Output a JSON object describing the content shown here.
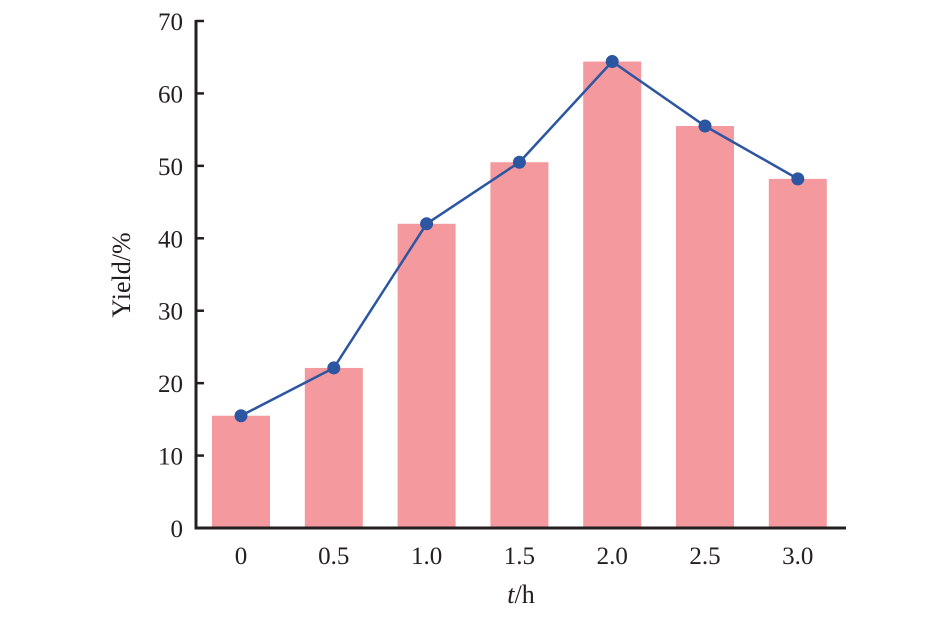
{
  "chart_data": {
    "type": "bar+line",
    "title": "",
    "xlabel": "t/h",
    "xlabel_italic_part": "t",
    "xlabel_rest": "/h",
    "ylabel": "Yield/%",
    "ylim": [
      0,
      70
    ],
    "yticks": [
      0,
      10,
      20,
      30,
      40,
      50,
      60,
      70
    ],
    "categories": [
      "0",
      "0.5",
      "1.0",
      "1.5",
      "2.0",
      "2.5",
      "3.0"
    ],
    "series": [
      {
        "name": "Yield (bar)",
        "type": "bar",
        "color": "#f4999e",
        "values": [
          15.5,
          22.1,
          42.0,
          50.5,
          64.4,
          55.5,
          48.2
        ]
      },
      {
        "name": "Yield (line)",
        "type": "line",
        "color": "#2c55a2",
        "values": [
          15.5,
          22.1,
          42.0,
          50.5,
          64.4,
          55.5,
          48.2
        ]
      }
    ],
    "grid": false,
    "legend": null
  }
}
